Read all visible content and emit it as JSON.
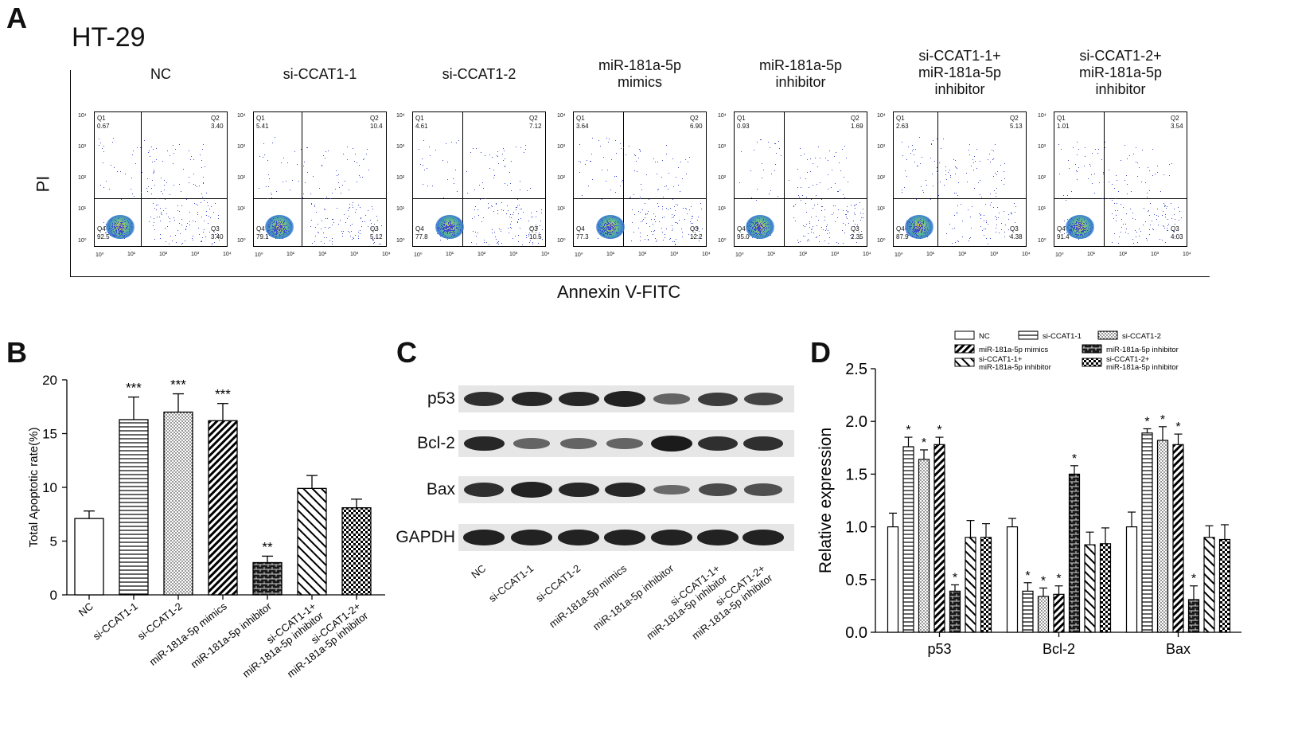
{
  "panel_labels": {
    "a": "A",
    "b": "B",
    "c": "C",
    "d": "D"
  },
  "panel_a": {
    "cell_line": "HT-29",
    "y_axis_label": "PI",
    "x_axis_label": "Annexin V-FITC",
    "x_ticks": [
      "10⁰",
      "10¹",
      "10²",
      "10³",
      "10⁴"
    ],
    "y_ticks": [
      "10⁴",
      "10³",
      "10²",
      "10¹",
      "10⁰"
    ],
    "plots": [
      {
        "title": "NC",
        "q1": "0.67",
        "q2": "3.40",
        "q3": "3.40",
        "q4": "92.5"
      },
      {
        "title": "si-CCAT1-1",
        "q1": "5.41",
        "q2": "10.4",
        "q3": "5.12",
        "q4": "79.1"
      },
      {
        "title": "si-CCAT1-2",
        "q1": "4.61",
        "q2": "7.12",
        "q3": "10.5",
        "q4": "77.8"
      },
      {
        "title": "miR-181a-5p\nmimics",
        "q1": "3.64",
        "q2": "6.90",
        "q3": "12.2",
        "q4": "77.3"
      },
      {
        "title": "miR-181a-5p\ninhibitor",
        "q1": "0.93",
        "q2": "1.69",
        "q3": "2.35",
        "q4": "95.0"
      },
      {
        "title": "si-CCAT1-1+\nmiR-181a-5p\ninhibitor",
        "q1": "2.63",
        "q2": "5.13",
        "q3": "4.38",
        "q4": "87.9"
      },
      {
        "title": "si-CCAT1-2+\nmiR-181a-5p\ninhibitor",
        "q1": "1.01",
        "q2": "3.54",
        "q3": "4.03",
        "q4": "91.4"
      }
    ],
    "quadrant_names": [
      "Q1",
      "Q2",
      "Q3",
      "Q4"
    ]
  },
  "panel_c": {
    "proteins": [
      "p53",
      "Bcl-2",
      "Bax",
      "GAPDH"
    ],
    "lanes": [
      "NC",
      "si-CCAT1-1",
      "si-CCAT1-2",
      "miR-181a-5p mimics",
      "miR-181a-5p inhibitor",
      "si-CCAT1-1+\nmiR-181a-5p inhibitor",
      "si-CCAT1-2+\nmiR-181a-5p inhibitor"
    ],
    "band_intensity": [
      [
        0.85,
        0.9,
        0.9,
        0.95,
        0.45,
        0.75,
        0.7
      ],
      [
        0.9,
        0.45,
        0.45,
        0.45,
        1.0,
        0.85,
        0.85
      ],
      [
        0.85,
        0.95,
        0.9,
        0.9,
        0.4,
        0.65,
        0.6
      ],
      [
        0.95,
        0.95,
        0.95,
        0.95,
        0.95,
        0.95,
        0.95
      ]
    ]
  },
  "chart_data": [
    {
      "type": "bar",
      "panel": "B",
      "ylabel": "Total Apoptotic rate(%)",
      "xlabel": "",
      "ylim": [
        0,
        20
      ],
      "yticks": [
        0,
        5,
        10,
        15,
        20
      ],
      "categories": [
        "NC",
        "si-CCAT1-1",
        "si-CCAT1-2",
        "miR-181a-5p mimics",
        "miR-181a-5p inhibitor",
        "si-CCAT1-1+\nmiR-181a-5p inhibitor",
        "si-CCAT1-2+\nmiR-181a-5p inhibitor"
      ],
      "values": [
        7.1,
        16.3,
        17.0,
        16.2,
        3.0,
        9.9,
        8.1
      ],
      "errors": [
        0.7,
        2.1,
        1.7,
        1.6,
        0.6,
        1.2,
        0.8
      ],
      "significance": [
        "",
        "***",
        "***",
        "***",
        "**",
        "",
        ""
      ],
      "patterns": [
        "blank",
        "hlines",
        "dots",
        "diag",
        "brick",
        "backdiag",
        "checker"
      ],
      "grid": false
    },
    {
      "type": "bar",
      "panel": "D",
      "ylabel": "Relative expression",
      "xlabel": "",
      "ylim": [
        0,
        2.5
      ],
      "yticks": [
        0.0,
        0.5,
        1.0,
        1.5,
        2.0,
        2.5
      ],
      "categories": [
        "p53",
        "Bcl-2",
        "Bax"
      ],
      "legend_position": "top",
      "series": [
        {
          "name": "NC",
          "pattern": "blank",
          "values": [
            1.0,
            1.0,
            1.0
          ],
          "errors": [
            0.13,
            0.08,
            0.14
          ],
          "significance": [
            "",
            "",
            ""
          ]
        },
        {
          "name": "si-CCAT1-1",
          "pattern": "hlines",
          "values": [
            1.76,
            0.39,
            1.89
          ],
          "errors": [
            0.09,
            0.08,
            0.04
          ],
          "significance": [
            "*",
            "*",
            "*"
          ]
        },
        {
          "name": "si-CCAT1-2",
          "pattern": "dots",
          "values": [
            1.64,
            0.34,
            1.82
          ],
          "errors": [
            0.09,
            0.08,
            0.13
          ],
          "significance": [
            "*",
            "*",
            "*"
          ]
        },
        {
          "name": "miR-181a-5p mimics",
          "pattern": "diag",
          "values": [
            1.78,
            0.36,
            1.78
          ],
          "errors": [
            0.07,
            0.08,
            0.1
          ],
          "significance": [
            "*",
            "*",
            "*"
          ]
        },
        {
          "name": "miR-181a-5p inhibitor",
          "pattern": "brick",
          "values": [
            0.39,
            1.5,
            0.31
          ],
          "errors": [
            0.06,
            0.08,
            0.13
          ],
          "significance": [
            "*",
            "*",
            "*"
          ]
        },
        {
          "name": "si-CCAT1-1+\nmiR-181a-5p inhibitor",
          "pattern": "backdiag",
          "values": [
            0.9,
            0.83,
            0.9
          ],
          "errors": [
            0.16,
            0.12,
            0.11
          ],
          "significance": [
            "",
            "",
            ""
          ]
        },
        {
          "name": "si-CCAT1-2+\nmiR-181a-5p inhibitor",
          "pattern": "checker",
          "values": [
            0.9,
            0.84,
            0.88
          ],
          "errors": [
            0.13,
            0.15,
            0.14
          ],
          "significance": [
            "",
            "",
            ""
          ]
        }
      ],
      "grid": false
    }
  ]
}
